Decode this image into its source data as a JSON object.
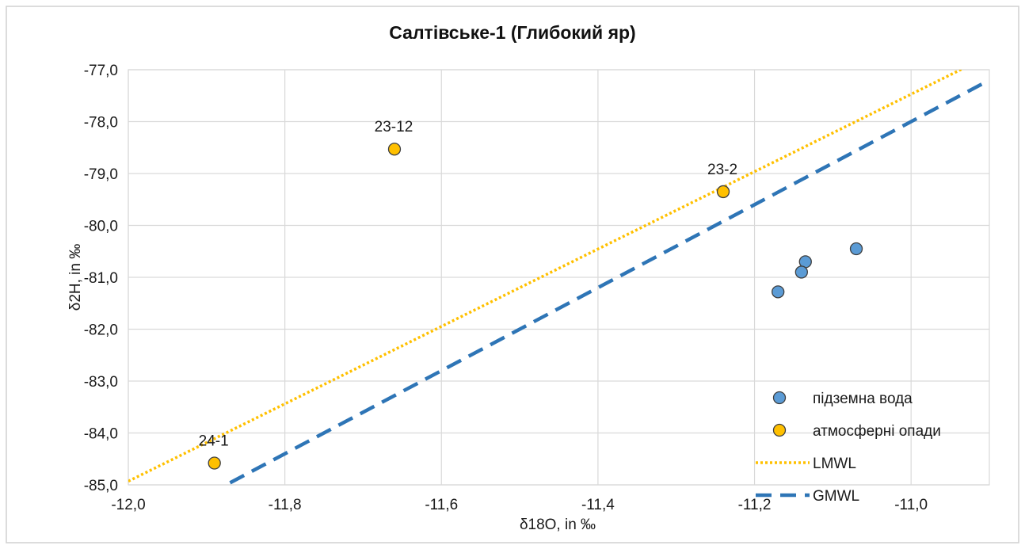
{
  "chart_data": {
    "type": "scatter",
    "title": "Салтівське-1 (Глибокий яр)",
    "xlabel": "δ18O, in ‰",
    "ylabel": "δ2H, in ‰",
    "xlim": [
      -12.0,
      -10.9
    ],
    "ylim": [
      -85.0,
      -77.0
    ],
    "x_ticks": [
      "-12,0",
      "-11,8",
      "-11,6",
      "-11,4",
      "-11,2",
      "-11,0"
    ],
    "x_tick_values": [
      -12.0,
      -11.8,
      -11.6,
      -11.4,
      -11.2,
      -11.0
    ],
    "y_ticks": [
      "-77,0",
      "-78,0",
      "-79,0",
      "-80,0",
      "-81,0",
      "-82,0",
      "-83,0",
      "-84,0",
      "-85,0"
    ],
    "y_tick_values": [
      -77,
      -78,
      -79,
      -80,
      -81,
      -82,
      -83,
      -84,
      -85
    ],
    "grid": true,
    "legend_position": "bottom-right",
    "series": [
      {
        "name": "підземна вода",
        "kind": "scatter",
        "color": "#5b9bd5",
        "points": [
          {
            "x": -11.07,
            "y": -80.45
          },
          {
            "x": -11.135,
            "y": -80.7
          },
          {
            "x": -11.14,
            "y": -80.9
          },
          {
            "x": -11.17,
            "y": -81.28
          }
        ]
      },
      {
        "name": "атмосферні опади",
        "kind": "scatter",
        "color": "#ffc000",
        "points": [
          {
            "x": -11.66,
            "y": -78.53,
            "label": "23-12"
          },
          {
            "x": -11.24,
            "y": -79.35,
            "label": "23-2"
          },
          {
            "x": -11.89,
            "y": -84.58,
            "label": "24-1"
          }
        ]
      },
      {
        "name": "LMWL",
        "kind": "line",
        "style": "dotted",
        "color": "#ffc000",
        "points": [
          {
            "x": -12.0,
            "y": -84.93
          },
          {
            "x": -10.93,
            "y": -76.95
          }
        ]
      },
      {
        "name": "GMWL",
        "kind": "line",
        "style": "dashed",
        "color": "#2e75b6",
        "points": [
          {
            "x": -11.87,
            "y": -84.96
          },
          {
            "x": -10.9,
            "y": -77.2
          }
        ]
      }
    ]
  }
}
